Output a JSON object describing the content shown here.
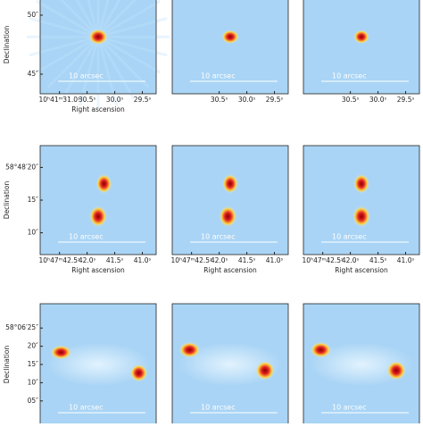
{
  "rows": [
    {
      "y_label": "Declination",
      "yticks": [
        "50″",
        "45″"
      ],
      "x_label": "Right ascension",
      "panels": [
        {
          "xticks": [
            "10ʰ41ᵐ31.0ˢ",
            "30.5ˢ",
            "30.0ˢ",
            "29.5ˢ"
          ],
          "scale_bar": "10 arcsec"
        },
        {
          "xticks": [
            "30.5ˢ",
            "30.0ˢ",
            "29.5ˢ"
          ],
          "scale_bar": "10 arcsec"
        },
        {
          "xticks": [
            "30.5ˢ",
            "30.0ˢ",
            "29.5ˢ"
          ],
          "scale_bar": "10 arcsec"
        }
      ]
    },
    {
      "y_label": "Declination",
      "yticks": [
        "58°48′20″",
        "15″",
        "10″"
      ],
      "x_label": "Right ascension",
      "panels": [
        {
          "xticks": [
            "10ʰ47ᵐ42.5ˢ",
            "42.0ˢ",
            "41.5ˢ",
            "41.0ˢ"
          ],
          "scale_bar": "10 arcsec"
        },
        {
          "xticks": [
            "10ʰ47ᵐ42.5ˢ",
            "42.0ˢ",
            "41.5ˢ",
            "41.0ˢ"
          ],
          "scale_bar": "10 arcsec"
        },
        {
          "xticks": [
            "10ʰ47ᵐ42.5ˢ",
            "42.0ˢ",
            "41.5ˢ",
            "41.0ˢ"
          ],
          "scale_bar": "10 arcsec"
        }
      ]
    },
    {
      "y_label": "Declination",
      "yticks": [
        "58°06′25″",
        "20″",
        "15″",
        "10″",
        "05″"
      ],
      "panels": [
        {
          "scale_bar": "10 arcsec"
        },
        {
          "scale_bar": "10 arcsec"
        },
        {
          "scale_bar": "10 arcsec"
        }
      ]
    }
  ]
}
